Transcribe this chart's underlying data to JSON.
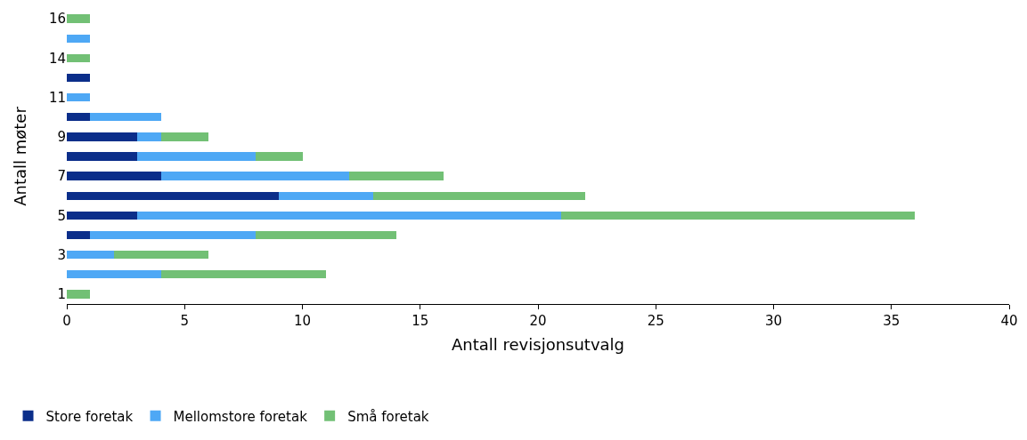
{
  "chart_data": {
    "type": "bar",
    "orientation": "horizontal",
    "stacked": true,
    "xlabel": "Antall revisjonsutvalg",
    "ylabel": "Antall møter",
    "categories": [
      "16",
      null,
      "14",
      null,
      "11",
      null,
      "9",
      null,
      "7",
      null,
      "5",
      null,
      "3",
      null,
      "1"
    ],
    "series": [
      {
        "name": "Store foretak",
        "color": "#0b2e8a",
        "values": [
          0,
          0,
          0,
          1,
          0,
          1,
          3,
          3,
          4,
          9,
          3,
          1,
          0,
          0,
          0
        ]
      },
      {
        "name": "Mellomstore foretak",
        "color": "#4ea8f5",
        "values": [
          0,
          1,
          0,
          0,
          1,
          3,
          1,
          5,
          8,
          4,
          18,
          7,
          2,
          4,
          0
        ]
      },
      {
        "name": "Små foretak",
        "color": "#72c075",
        "values": [
          1,
          0,
          1,
          0,
          0,
          0,
          2,
          2,
          4,
          9,
          15,
          6,
          4,
          7,
          1
        ]
      }
    ],
    "xlim": [
      0,
      40
    ],
    "xticks": [
      0,
      5,
      10,
      15,
      20,
      25,
      30,
      35,
      40
    ],
    "grid": false,
    "legend": "bottom left"
  }
}
